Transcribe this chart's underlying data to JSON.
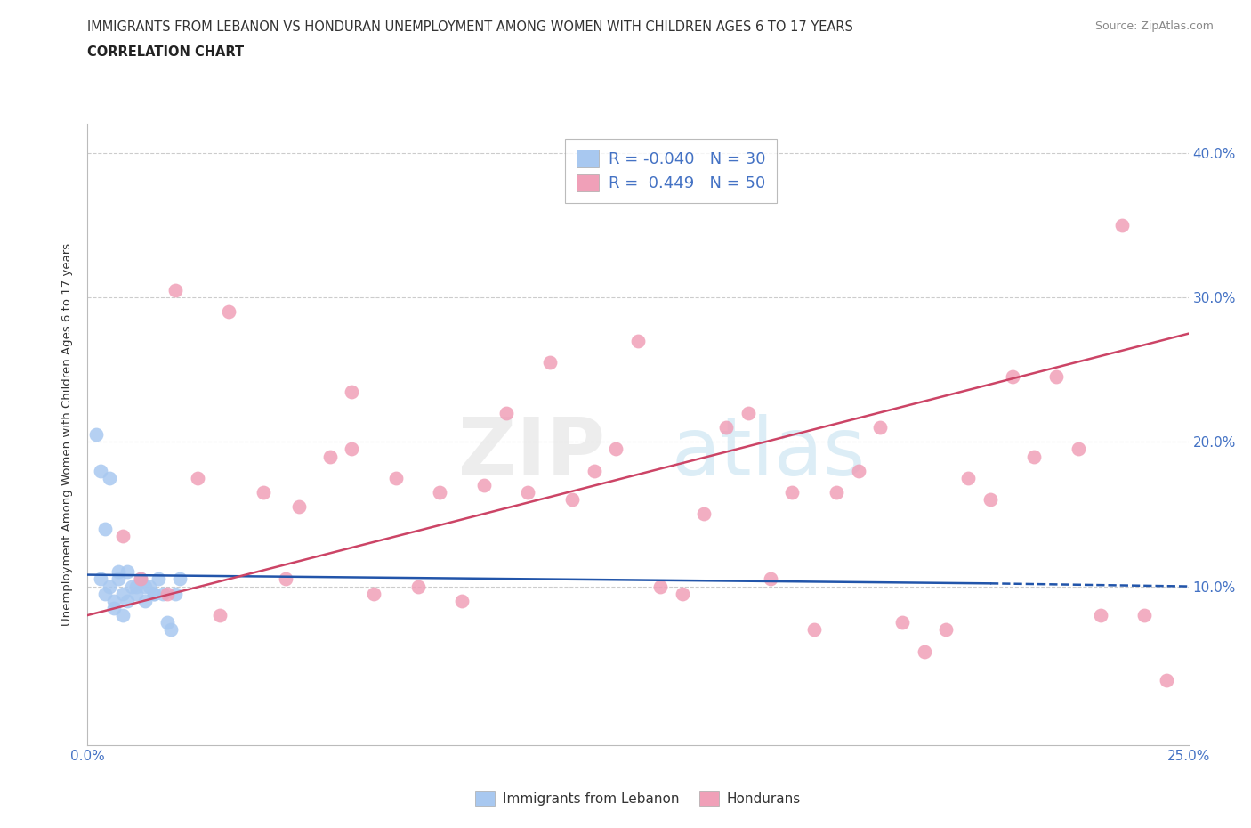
{
  "title_line1": "IMMIGRANTS FROM LEBANON VS HONDURAN UNEMPLOYMENT AMONG WOMEN WITH CHILDREN AGES 6 TO 17 YEARS",
  "title_line2": "CORRELATION CHART",
  "source": "Source: ZipAtlas.com",
  "ylabel": "Unemployment Among Women with Children Ages 6 to 17 years",
  "xmin": 0.0,
  "xmax": 25.0,
  "ymin": -1.0,
  "ymax": 42.0,
  "yticks": [
    10.0,
    20.0,
    30.0,
    40.0
  ],
  "legend_r1": "-0.040",
  "legend_n1": "30",
  "legend_r2": "0.449",
  "legend_n2": "50",
  "legend_label1": "Immigrants from Lebanon",
  "legend_label2": "Hondurans",
  "blue_color": "#a8c8f0",
  "pink_color": "#f0a0b8",
  "blue_line_color": "#2255aa",
  "pink_line_color": "#cc4466",
  "blue_scatter_x": [
    0.2,
    0.3,
    0.4,
    0.5,
    0.6,
    0.7,
    0.8,
    0.9,
    1.0,
    1.1,
    1.2,
    1.3,
    1.4,
    1.5,
    1.6,
    1.7,
    1.8,
    1.9,
    2.0,
    2.1,
    0.3,
    0.5,
    0.7,
    0.9,
    1.1,
    1.3,
    1.5,
    0.4,
    0.6,
    0.8
  ],
  "blue_scatter_y": [
    20.5,
    10.5,
    9.5,
    10.0,
    9.0,
    10.5,
    9.5,
    9.0,
    10.0,
    9.5,
    10.5,
    9.0,
    10.0,
    9.5,
    10.5,
    9.5,
    7.5,
    7.0,
    9.5,
    10.5,
    18.0,
    17.5,
    11.0,
    11.0,
    10.0,
    10.0,
    9.5,
    14.0,
    8.5,
    8.0
  ],
  "pink_scatter_x": [
    0.8,
    1.2,
    1.8,
    2.5,
    3.2,
    4.0,
    4.8,
    5.5,
    6.0,
    6.5,
    7.0,
    7.5,
    8.0,
    8.5,
    9.0,
    9.5,
    10.0,
    10.5,
    11.0,
    11.5,
    12.0,
    12.5,
    13.0,
    13.5,
    14.0,
    14.5,
    15.0,
    15.5,
    16.0,
    16.5,
    17.0,
    17.5,
    18.0,
    18.5,
    19.0,
    19.5,
    20.0,
    20.5,
    21.0,
    21.5,
    22.0,
    22.5,
    23.0,
    23.5,
    24.0,
    24.5,
    2.0,
    3.0,
    4.5,
    6.0
  ],
  "pink_scatter_y": [
    13.5,
    10.5,
    9.5,
    17.5,
    29.0,
    16.5,
    15.5,
    19.0,
    19.5,
    9.5,
    17.5,
    10.0,
    16.5,
    9.0,
    17.0,
    22.0,
    16.5,
    25.5,
    16.0,
    18.0,
    19.5,
    27.0,
    10.0,
    9.5,
    15.0,
    21.0,
    22.0,
    10.5,
    16.5,
    7.0,
    16.5,
    18.0,
    21.0,
    7.5,
    5.5,
    7.0,
    17.5,
    16.0,
    24.5,
    19.0,
    24.5,
    19.5,
    8.0,
    35.0,
    8.0,
    3.5,
    30.5,
    8.0,
    10.5,
    23.5
  ],
  "blue_trend_x0": 0.0,
  "blue_trend_x1": 20.5,
  "blue_trend_x2": 25.0,
  "blue_trend_y0": 10.8,
  "blue_trend_y1": 10.2,
  "blue_trend_y2": 10.0,
  "pink_trend_x0": 0.0,
  "pink_trend_x1": 25.0,
  "pink_trend_y0": 8.0,
  "pink_trend_y1": 27.5
}
